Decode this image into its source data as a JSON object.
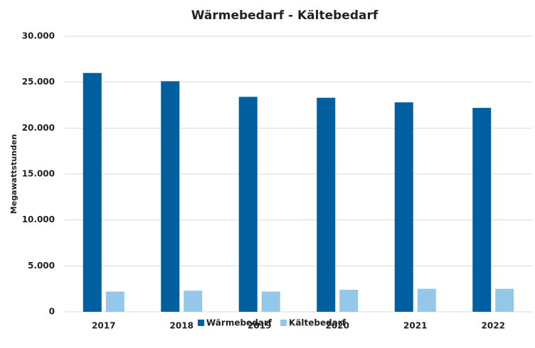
{
  "chart_data": {
    "type": "bar",
    "title": "Wärmebedarf - Kältebedarf",
    "y_label": "Megawattstunden",
    "categories": [
      "2017",
      "2018",
      "2019",
      "2020",
      "2021",
      "2022"
    ],
    "series": [
      {
        "name": "Wärmebedarf",
        "color": "#005f9e",
        "values": [
          26000,
          25100,
          23400,
          23300,
          22800,
          22200
        ]
      },
      {
        "name": "Kältebedarf",
        "color": "#95c8e8",
        "values": [
          2200,
          2300,
          2200,
          2400,
          2500,
          2500
        ]
      }
    ],
    "ylim": [
      0,
      30000
    ],
    "yticks": [
      0,
      {
        "value": 5000,
        "label": "5.000"
      },
      {
        "value": 10000,
        "label": "10.000"
      },
      {
        "value": 15000,
        "label": "15.000"
      },
      {
        "value": 20000,
        "label": "20.000"
      },
      {
        "value": 25000,
        "label": "25.000"
      },
      {
        "value": 30000,
        "label": "30.000"
      }
    ],
    "grid": true,
    "legend": "bottom"
  }
}
